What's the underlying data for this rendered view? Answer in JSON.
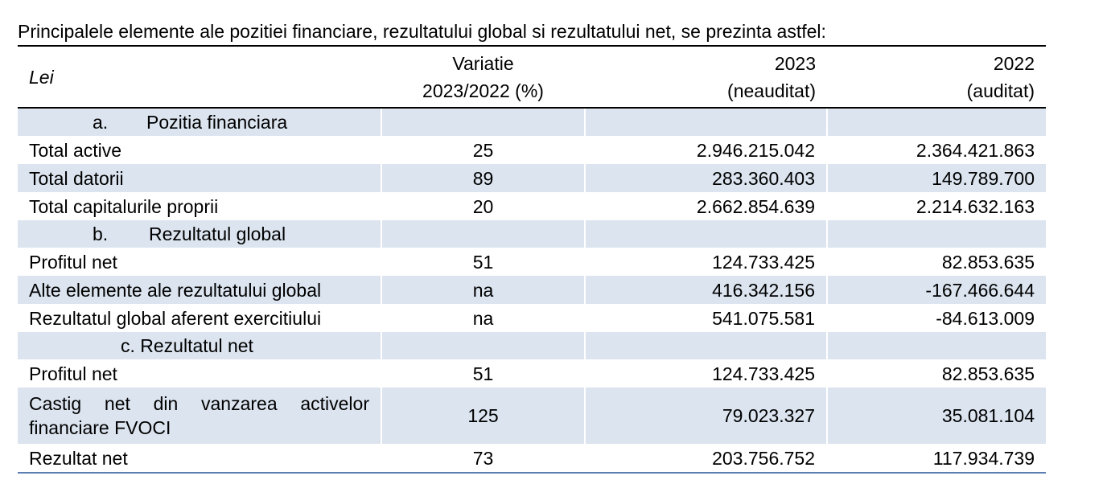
{
  "intro": "Principalele elemente ale pozitiei financiare, rezultatului global si rezultatului net, se prezinta astfel:",
  "header": {
    "unit": "Lei",
    "variation_line1": "Variatie",
    "variation_line2": "2023/2022 (%)",
    "y2023_line1": "2023",
    "y2023_line2": "(neauditat)",
    "y2022_line1": "2022",
    "y2022_line2": "(auditat)"
  },
  "sections": {
    "a": {
      "num": "a.",
      "title": "Pozitia financiara"
    },
    "b": {
      "num": "b.",
      "title": "Rezultatul global"
    },
    "c": {
      "title": "c. Rezultatul net"
    }
  },
  "rows": {
    "total_active": {
      "label": "Total active",
      "var": "25",
      "y2023": "2.946.215.042",
      "y2022": "2.364.421.863"
    },
    "total_datorii": {
      "label": "Total datorii",
      "var": "89",
      "y2023": "283.360.403",
      "y2022": "149.789.700"
    },
    "total_capitaluri": {
      "label": "Total capitalurile proprii",
      "var": "20",
      "y2023": "2.662.854.639",
      "y2022": "2.214.632.163"
    },
    "profit_net_b": {
      "label": "Profitul net",
      "var": "51",
      "y2023": "124.733.425",
      "y2022": "82.853.635"
    },
    "alte_elemente": {
      "label": "Alte elemente ale rezultatului global",
      "var": "na",
      "y2023": "416.342.156",
      "y2022": "-167.466.644"
    },
    "rezultat_global": {
      "label": "Rezultatul global aferent exercitiului",
      "var": "na",
      "y2023": "541.075.581",
      "y2022": "-84.613.009"
    },
    "profit_net_c": {
      "label": "Profitul net",
      "var": "51",
      "y2023": "124.733.425",
      "y2022": "82.853.635"
    },
    "castig_net": {
      "label": "Castig net din vanzarea activelor financiare FVOCI",
      "var": "125",
      "y2023": "79.023.327",
      "y2022": "35.081.104"
    },
    "rezultat_net": {
      "label": "Rezultat net",
      "var": "73",
      "y2023": "203.756.752",
      "y2022": "117.934.739"
    }
  },
  "colors": {
    "row_shade": "#dbe4ef",
    "bottom_rule": "#5b7fb2"
  }
}
